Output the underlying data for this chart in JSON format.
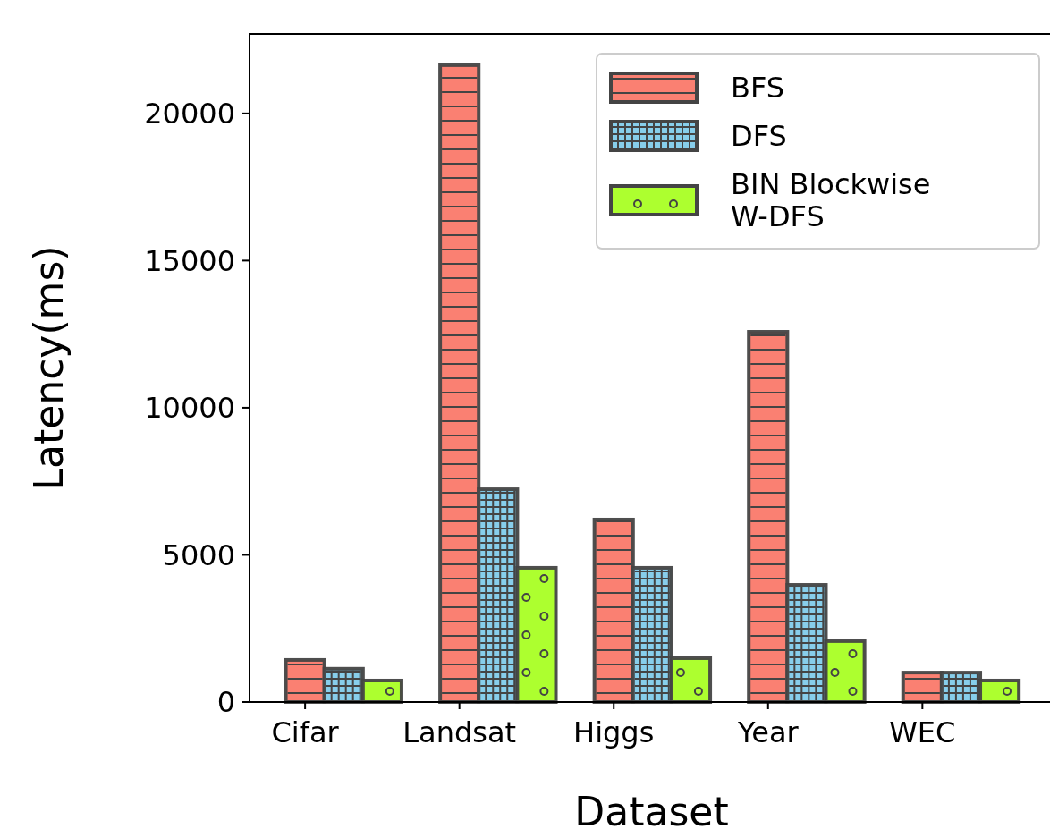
{
  "chart_data": {
    "type": "bar",
    "xlabel": "Dataset",
    "ylabel": "Latency(ms)",
    "categories": [
      "Cifar",
      "Landsat",
      "Higgs",
      "Year",
      "WEC"
    ],
    "series": [
      {
        "name": "BFS",
        "color": "#fa8072",
        "values": [
          1430,
          21640,
          6200,
          12580,
          1000
        ]
      },
      {
        "name": "DFS",
        "color": "#87ceeb",
        "values": [
          1130,
          7230,
          4560,
          3980,
          1000
        ]
      },
      {
        "name": "BIN Blockwise W-DFS",
        "color": "#adff2f",
        "values": [
          730,
          4560,
          1490,
          2070,
          730
        ]
      }
    ],
    "ylim": [
      0,
      22700
    ],
    "yticks": [
      0,
      5000,
      10000,
      15000,
      20000
    ],
    "legend": "top right"
  }
}
